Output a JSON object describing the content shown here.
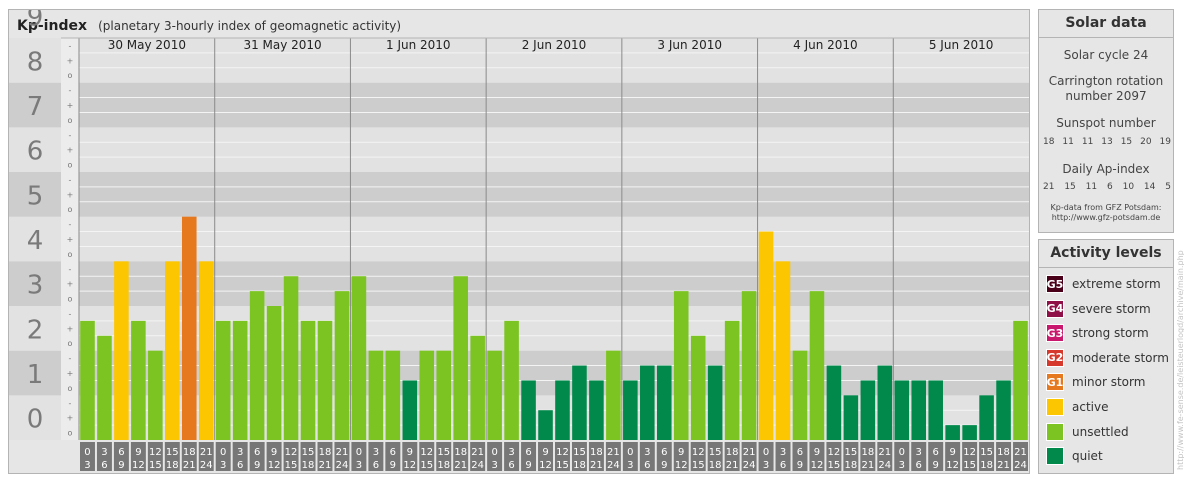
{
  "header": {
    "title": "Kp-index",
    "subtitle": "(planetary 3-hourly index of geomagnetic activity)"
  },
  "chart_data": {
    "type": "bar",
    "title": "Kp-index",
    "subtitle": "(planetary 3-hourly index of geomagnetic activity)",
    "ylim": [
      0,
      9
    ],
    "y_ticks": [
      "0",
      "1",
      "2",
      "3",
      "4",
      "5",
      "6",
      "7",
      "8",
      "9"
    ],
    "minor_tick_labels": [
      "o",
      "+",
      "-"
    ],
    "days": [
      "30 May 2010",
      "31 May 2010",
      "1 Jun 2010",
      "2 Jun 2010",
      "3 Jun 2010",
      "4 Jun 2010",
      "5 Jun 2010"
    ],
    "interval_starts": [
      "0",
      "3",
      "6",
      "9",
      "12",
      "15",
      "18",
      "21"
    ],
    "interval_ends": [
      "3",
      "6",
      "9",
      "12",
      "15",
      "18",
      "21",
      "24"
    ],
    "values": [
      [
        2.667,
        2.333,
        4.0,
        2.667,
        2.0,
        4.0,
        5.0,
        4.0
      ],
      [
        2.667,
        2.667,
        3.333,
        3.0,
        3.667,
        2.667,
        2.667,
        3.333
      ],
      [
        3.667,
        2.0,
        2.0,
        1.333,
        2.0,
        2.0,
        3.667,
        2.333
      ],
      [
        2.0,
        2.667,
        1.333,
        0.667,
        1.333,
        1.667,
        1.333,
        2.0
      ],
      [
        1.333,
        1.667,
        1.667,
        3.333,
        2.333,
        1.667,
        2.667,
        3.333
      ],
      [
        4.667,
        4.0,
        2.0,
        3.333,
        1.667,
        1.0,
        1.333,
        1.667
      ],
      [
        1.333,
        1.333,
        1.333,
        0.333,
        0.333,
        1.0,
        1.333,
        2.667
      ]
    ],
    "colors": {
      "quiet": "#00894a",
      "unsettled": "#7cc421",
      "active": "#fcc600",
      "minor_storm": "#e6781e"
    },
    "grid": true
  },
  "solar": {
    "title": "Solar data",
    "cycle": "Solar cycle 24",
    "carrington_line1": "Carrington rotation",
    "carrington_line2": "number 2097",
    "sunspot_label": "Sunspot number",
    "sunspot_values": [
      "18",
      "11",
      "11",
      "13",
      "15",
      "20",
      "19"
    ],
    "ap_label": "Daily Ap-index",
    "ap_values": [
      "21",
      "15",
      "11",
      "6",
      "10",
      "14",
      "5"
    ],
    "source_line1": "Kp-data from GFZ Potsdam:",
    "source_line2": "http://www.gfz-potsdam.de"
  },
  "activity": {
    "title": "Activity levels",
    "items": [
      {
        "code": "G5",
        "label": "extreme storm",
        "color": "#4a0018"
      },
      {
        "code": "G4",
        "label": "severe storm",
        "color": "#8e1046"
      },
      {
        "code": "G3",
        "label": "strong storm",
        "color": "#c8176c"
      },
      {
        "code": "G2",
        "label": "moderate storm",
        "color": "#d6392b"
      },
      {
        "code": "G1",
        "label": "minor storm",
        "color": "#e6781e"
      },
      {
        "code": "",
        "label": "active",
        "color": "#fcc600"
      },
      {
        "code": "",
        "label": "unsettled",
        "color": "#7cc421"
      },
      {
        "code": "",
        "label": "quiet",
        "color": "#00894a"
      }
    ]
  },
  "watermark": "http://www.fe-sense.de/leisteuerlogd/archive/main.php"
}
